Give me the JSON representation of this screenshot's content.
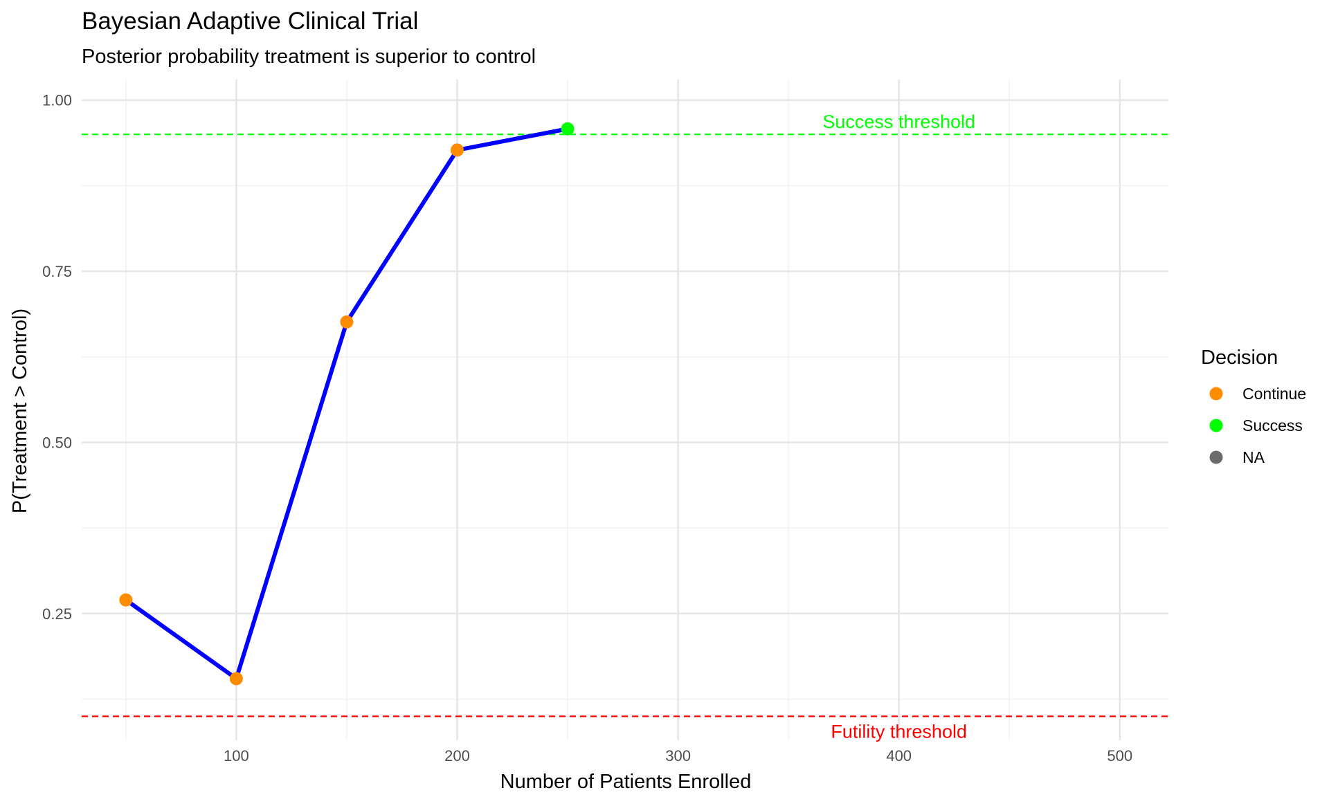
{
  "chart_data": {
    "type": "line",
    "title": "Bayesian Adaptive Clinical Trial",
    "subtitle": "Posterior probability treatment is superior to control",
    "xlabel": "Number of Patients Enrolled",
    "ylabel": "P(Treatment > Control)",
    "xlim": [
      30,
      522
    ],
    "ylim": [
      0.065,
      1.03
    ],
    "x_ticks": [
      100,
      200,
      300,
      400,
      500
    ],
    "x_tick_labels": [
      "100",
      "200",
      "300",
      "400",
      "500"
    ],
    "y_ticks": [
      0.25,
      0.5,
      0.75,
      1.0
    ],
    "y_tick_labels": [
      "0.25",
      "0.50",
      "0.75",
      "1.00"
    ],
    "grid": true,
    "line_color": "#0000ff",
    "points": [
      {
        "x": 50,
        "y": 0.27,
        "decision": "Continue"
      },
      {
        "x": 100,
        "y": 0.155,
        "decision": "Continue"
      },
      {
        "x": 150,
        "y": 0.676,
        "decision": "Continue"
      },
      {
        "x": 200,
        "y": 0.927,
        "decision": "Continue"
      },
      {
        "x": 250,
        "y": 0.958,
        "decision": "Success"
      }
    ],
    "thresholds": [
      {
        "label": "Success threshold",
        "y": 0.95,
        "color": "#00ff00",
        "label_x": 400,
        "label_position": "above"
      },
      {
        "label": "Futility threshold",
        "y": 0.1,
        "color": "#ff0000",
        "label_x": 400,
        "label_position": "below"
      }
    ],
    "legend": {
      "title": "Decision",
      "placement": "right",
      "items": [
        {
          "label": "Continue",
          "color": "#ff8c00"
        },
        {
          "label": "Success",
          "color": "#00ff00"
        },
        {
          "label": "NA",
          "color": "#6b6b6b"
        }
      ]
    }
  }
}
